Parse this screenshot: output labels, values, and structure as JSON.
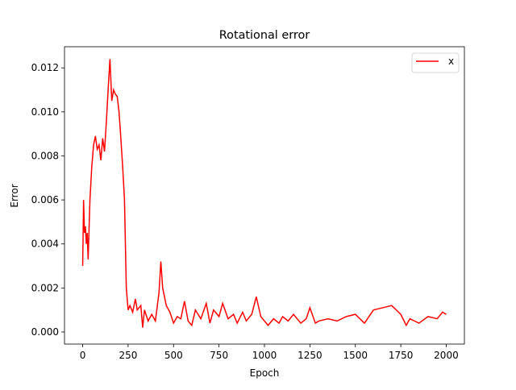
{
  "chart_data": {
    "type": "line",
    "title": "Rotational error",
    "x_label": "Epoch",
    "y_label": "Error",
    "x": [
      0,
      5,
      10,
      15,
      20,
      25,
      30,
      40,
      50,
      60,
      70,
      80,
      90,
      100,
      110,
      120,
      130,
      140,
      150,
      160,
      170,
      180,
      190,
      200,
      210,
      220,
      230,
      240,
      250,
      260,
      275,
      290,
      300,
      320,
      330,
      340,
      360,
      380,
      400,
      420,
      430,
      440,
      460,
      480,
      500,
      520,
      540,
      560,
      580,
      600,
      620,
      650,
      680,
      700,
      720,
      750,
      770,
      800,
      830,
      850,
      880,
      900,
      930,
      955,
      980,
      1000,
      1020,
      1050,
      1080,
      1100,
      1130,
      1160,
      1200,
      1230,
      1250,
      1280,
      1300,
      1350,
      1400,
      1450,
      1500,
      1550,
      1600,
      1650,
      1700,
      1750,
      1780,
      1800,
      1850,
      1900,
      1950,
      1980,
      2000
    ],
    "series": [
      {
        "name": "x",
        "color": "#ff0000",
        "values": [
          0.003,
          0.006,
          0.0045,
          0.0048,
          0.004,
          0.0045,
          0.0033,
          0.006,
          0.0075,
          0.0085,
          0.0089,
          0.0083,
          0.0085,
          0.0078,
          0.0088,
          0.0082,
          0.0095,
          0.011,
          0.0124,
          0.0105,
          0.011,
          0.0108,
          0.0107,
          0.01,
          0.0088,
          0.0075,
          0.006,
          0.002,
          0.001,
          0.0012,
          0.0009,
          0.0015,
          0.001,
          0.0012,
          0.0002,
          0.001,
          0.0005,
          0.0008,
          0.0005,
          0.0018,
          0.0032,
          0.002,
          0.0012,
          0.0009,
          0.0004,
          0.0007,
          0.0006,
          0.0014,
          0.0005,
          0.0003,
          0.001,
          0.0006,
          0.0013,
          0.0004,
          0.001,
          0.0007,
          0.0013,
          0.0006,
          0.0008,
          0.0004,
          0.0009,
          0.0005,
          0.0008,
          0.0016,
          0.0007,
          0.0005,
          0.0003,
          0.0006,
          0.0004,
          0.0007,
          0.0005,
          0.0008,
          0.0004,
          0.0006,
          0.0011,
          0.0004,
          0.0005,
          0.0006,
          0.0005,
          0.0007,
          0.0008,
          0.0004,
          0.001,
          0.0011,
          0.0012,
          0.0008,
          0.0003,
          0.0006,
          0.0004,
          0.0007,
          0.0006,
          0.0009,
          0.0008
        ]
      }
    ],
    "xlim": [
      -100,
      2100
    ],
    "ylim": [
      -0.00055,
      0.01296
    ],
    "xticks": [
      0,
      250,
      500,
      750,
      1000,
      1250,
      1500,
      1750,
      2000
    ],
    "yticks": [
      {
        "value": 0,
        "label": "0.000"
      },
      {
        "value": 0.002,
        "label": "0.002"
      },
      {
        "value": 0.004,
        "label": "0.004"
      },
      {
        "value": 0.006,
        "label": "0.006"
      },
      {
        "value": 0.008,
        "label": "0.008"
      },
      {
        "value": 0.01,
        "label": "0.010"
      },
      {
        "value": 0.012,
        "label": "0.012"
      }
    ],
    "legend": "upper right"
  }
}
